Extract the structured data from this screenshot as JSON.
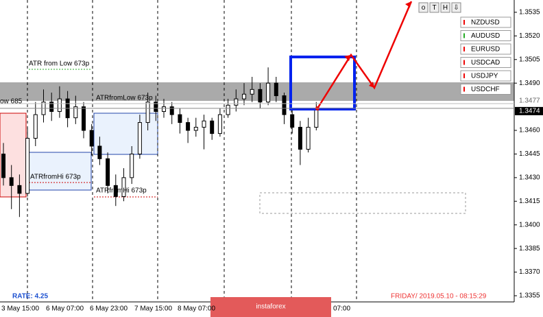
{
  "chart_data": {
    "type": "candlestick",
    "ylim": [
      1.33489,
      1.35428
    ],
    "yticks": [
      1.3535,
      {
        "value": 1.352,
        "label": "1.3520"
      },
      1.3505,
      {
        "value": 1.349,
        "label": "1.3490"
      },
      {
        "value": 1.346,
        "label": "1.3460"
      },
      1.3445,
      {
        "value": 1.343,
        "label": "1.3430"
      },
      1.3415,
      {
        "value": 1.34,
        "label": "1.3400"
      },
      1.3385,
      {
        "value": 1.337,
        "label": "1.3370"
      },
      1.3355
    ],
    "price_marks": [
      1.3477,
      1.3474
    ],
    "xlabels": [
      "3 May 15:00",
      "6 May 07:00",
      "6 May 23:00",
      "7 May 15:00",
      "8 May 07:00",
      "07:00"
    ],
    "candles": [
      [
        1.3445,
        1.3452,
        1.3425,
        1.343
      ],
      [
        1.343,
        1.3438,
        1.341,
        1.3425
      ],
      [
        1.3425,
        1.3432,
        1.3405,
        1.342
      ],
      [
        1.342,
        1.3462,
        1.3418,
        1.3455
      ],
      [
        1.3455,
        1.3478,
        1.345,
        1.347
      ],
      [
        1.347,
        1.3486,
        1.3465,
        1.3478
      ],
      [
        1.3478,
        1.3484,
        1.3466,
        1.3472
      ],
      [
        1.3472,
        1.3488,
        1.3468,
        1.348
      ],
      [
        1.348,
        1.3485,
        1.3462,
        1.3468
      ],
      [
        1.3468,
        1.3482,
        1.3464,
        1.3475
      ],
      [
        1.3475,
        1.3478,
        1.3455,
        1.346
      ],
      [
        1.346,
        1.3464,
        1.3444,
        1.345
      ],
      [
        1.345,
        1.3456,
        1.3438,
        1.3442
      ],
      [
        1.3442,
        1.3446,
        1.342,
        1.3425
      ],
      [
        1.3425,
        1.3432,
        1.3412,
        1.3418
      ],
      [
        1.3418,
        1.3436,
        1.3415,
        1.343
      ],
      [
        1.343,
        1.345,
        1.3426,
        1.3445
      ],
      [
        1.3445,
        1.347,
        1.3442,
        1.3465
      ],
      [
        1.3465,
        1.3484,
        1.346,
        1.3478
      ],
      [
        1.3478,
        1.3482,
        1.3466,
        1.3472
      ],
      [
        1.3472,
        1.348,
        1.3468,
        1.3475
      ],
      [
        1.3475,
        1.3478,
        1.3464,
        1.347
      ],
      [
        1.347,
        1.3474,
        1.3458,
        1.3465
      ],
      [
        1.3465,
        1.3468,
        1.3452,
        1.346
      ],
      [
        1.346,
        1.3468,
        1.3456,
        1.3462
      ],
      [
        1.3462,
        1.347,
        1.3448,
        1.3466
      ],
      [
        1.3466,
        1.3468,
        1.3454,
        1.3458
      ],
      [
        1.3458,
        1.3474,
        1.3456,
        1.347
      ],
      [
        1.347,
        1.348,
        1.3468,
        1.3476
      ],
      [
        1.3476,
        1.3486,
        1.3472,
        1.348
      ],
      [
        1.348,
        1.349,
        1.3476,
        1.3483
      ],
      [
        1.3483,
        1.3494,
        1.3478,
        1.3486
      ],
      [
        1.3486,
        1.349,
        1.3474,
        1.3478
      ],
      [
        1.3478,
        1.35,
        1.3476,
        1.349
      ],
      [
        1.349,
        1.3494,
        1.3478,
        1.3482
      ],
      [
        1.3482,
        1.3484,
        1.3464,
        1.347
      ],
      [
        1.347,
        1.3474,
        1.3458,
        1.3462
      ],
      [
        1.3462,
        1.3466,
        1.3438,
        1.3448
      ],
      [
        1.3448,
        1.3468,
        1.3446,
        1.3462
      ],
      [
        1.3462,
        1.3478,
        1.346,
        1.3474
      ]
    ],
    "annotations": [
      "ATR from Low 673p",
      "ow 685",
      "ATRfromLow 673p",
      "ATRfromHi 673p",
      "ATRfromHi 673p"
    ],
    "symbols": [
      "NZDUSD",
      "AUDUSD",
      "EURUSD",
      "USDCAD",
      "USDJPY",
      "USDCHF"
    ],
    "buttons": [
      "o",
      "T",
      "H",
      "⇩"
    ],
    "rate": "RATE: 4.25",
    "timestamp": "FRIDAY/ 2019.05.10 - 08:15:29",
    "watermark": "instaforex"
  }
}
